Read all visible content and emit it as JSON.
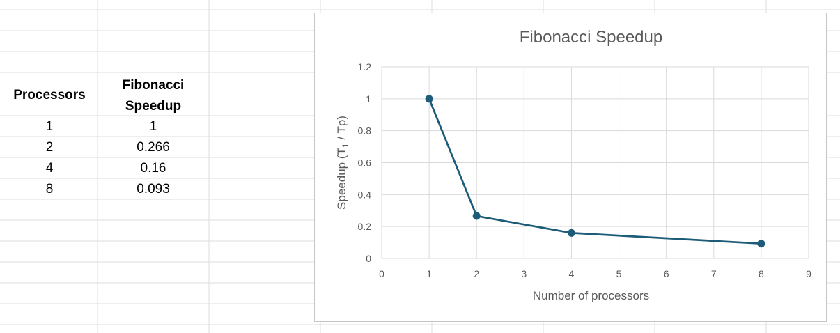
{
  "sheet": {
    "header": {
      "col1": "Processors",
      "col2_line1": "Fibonacci",
      "col2_line2": "Speedup"
    },
    "rows": [
      {
        "processors": "1",
        "speedup": "1"
      },
      {
        "processors": "2",
        "speedup": "0.266"
      },
      {
        "processors": "4",
        "speedup": "0.16"
      },
      {
        "processors": "8",
        "speedup": "0.093"
      }
    ]
  },
  "chart_data": {
    "type": "scatter",
    "title": "Fibonacci Speedup",
    "xlabel": "Number of processors",
    "ylabel_parts": [
      "Speedup (T",
      "1",
      " / Tp)"
    ],
    "xlim": [
      0,
      9
    ],
    "ylim": [
      0,
      1.2
    ],
    "x_ticks": [
      "0",
      "1",
      "2",
      "3",
      "4",
      "5",
      "6",
      "7",
      "8",
      "9"
    ],
    "y_ticks": [
      "0",
      "0.2",
      "0.4",
      "0.6",
      "0.8",
      "1",
      "1.2"
    ],
    "grid": true,
    "series": [
      {
        "x": [
          1,
          2,
          4,
          8
        ],
        "y": [
          1,
          0.266,
          0.16,
          0.093
        ],
        "color": "#1d5c78",
        "style": "line-with-markers"
      }
    ],
    "gridline_color": "#d9d9d9"
  },
  "colors": {
    "sheet_grid": "#dedede",
    "series": "#1d5c78",
    "text_gray": "#595959"
  }
}
